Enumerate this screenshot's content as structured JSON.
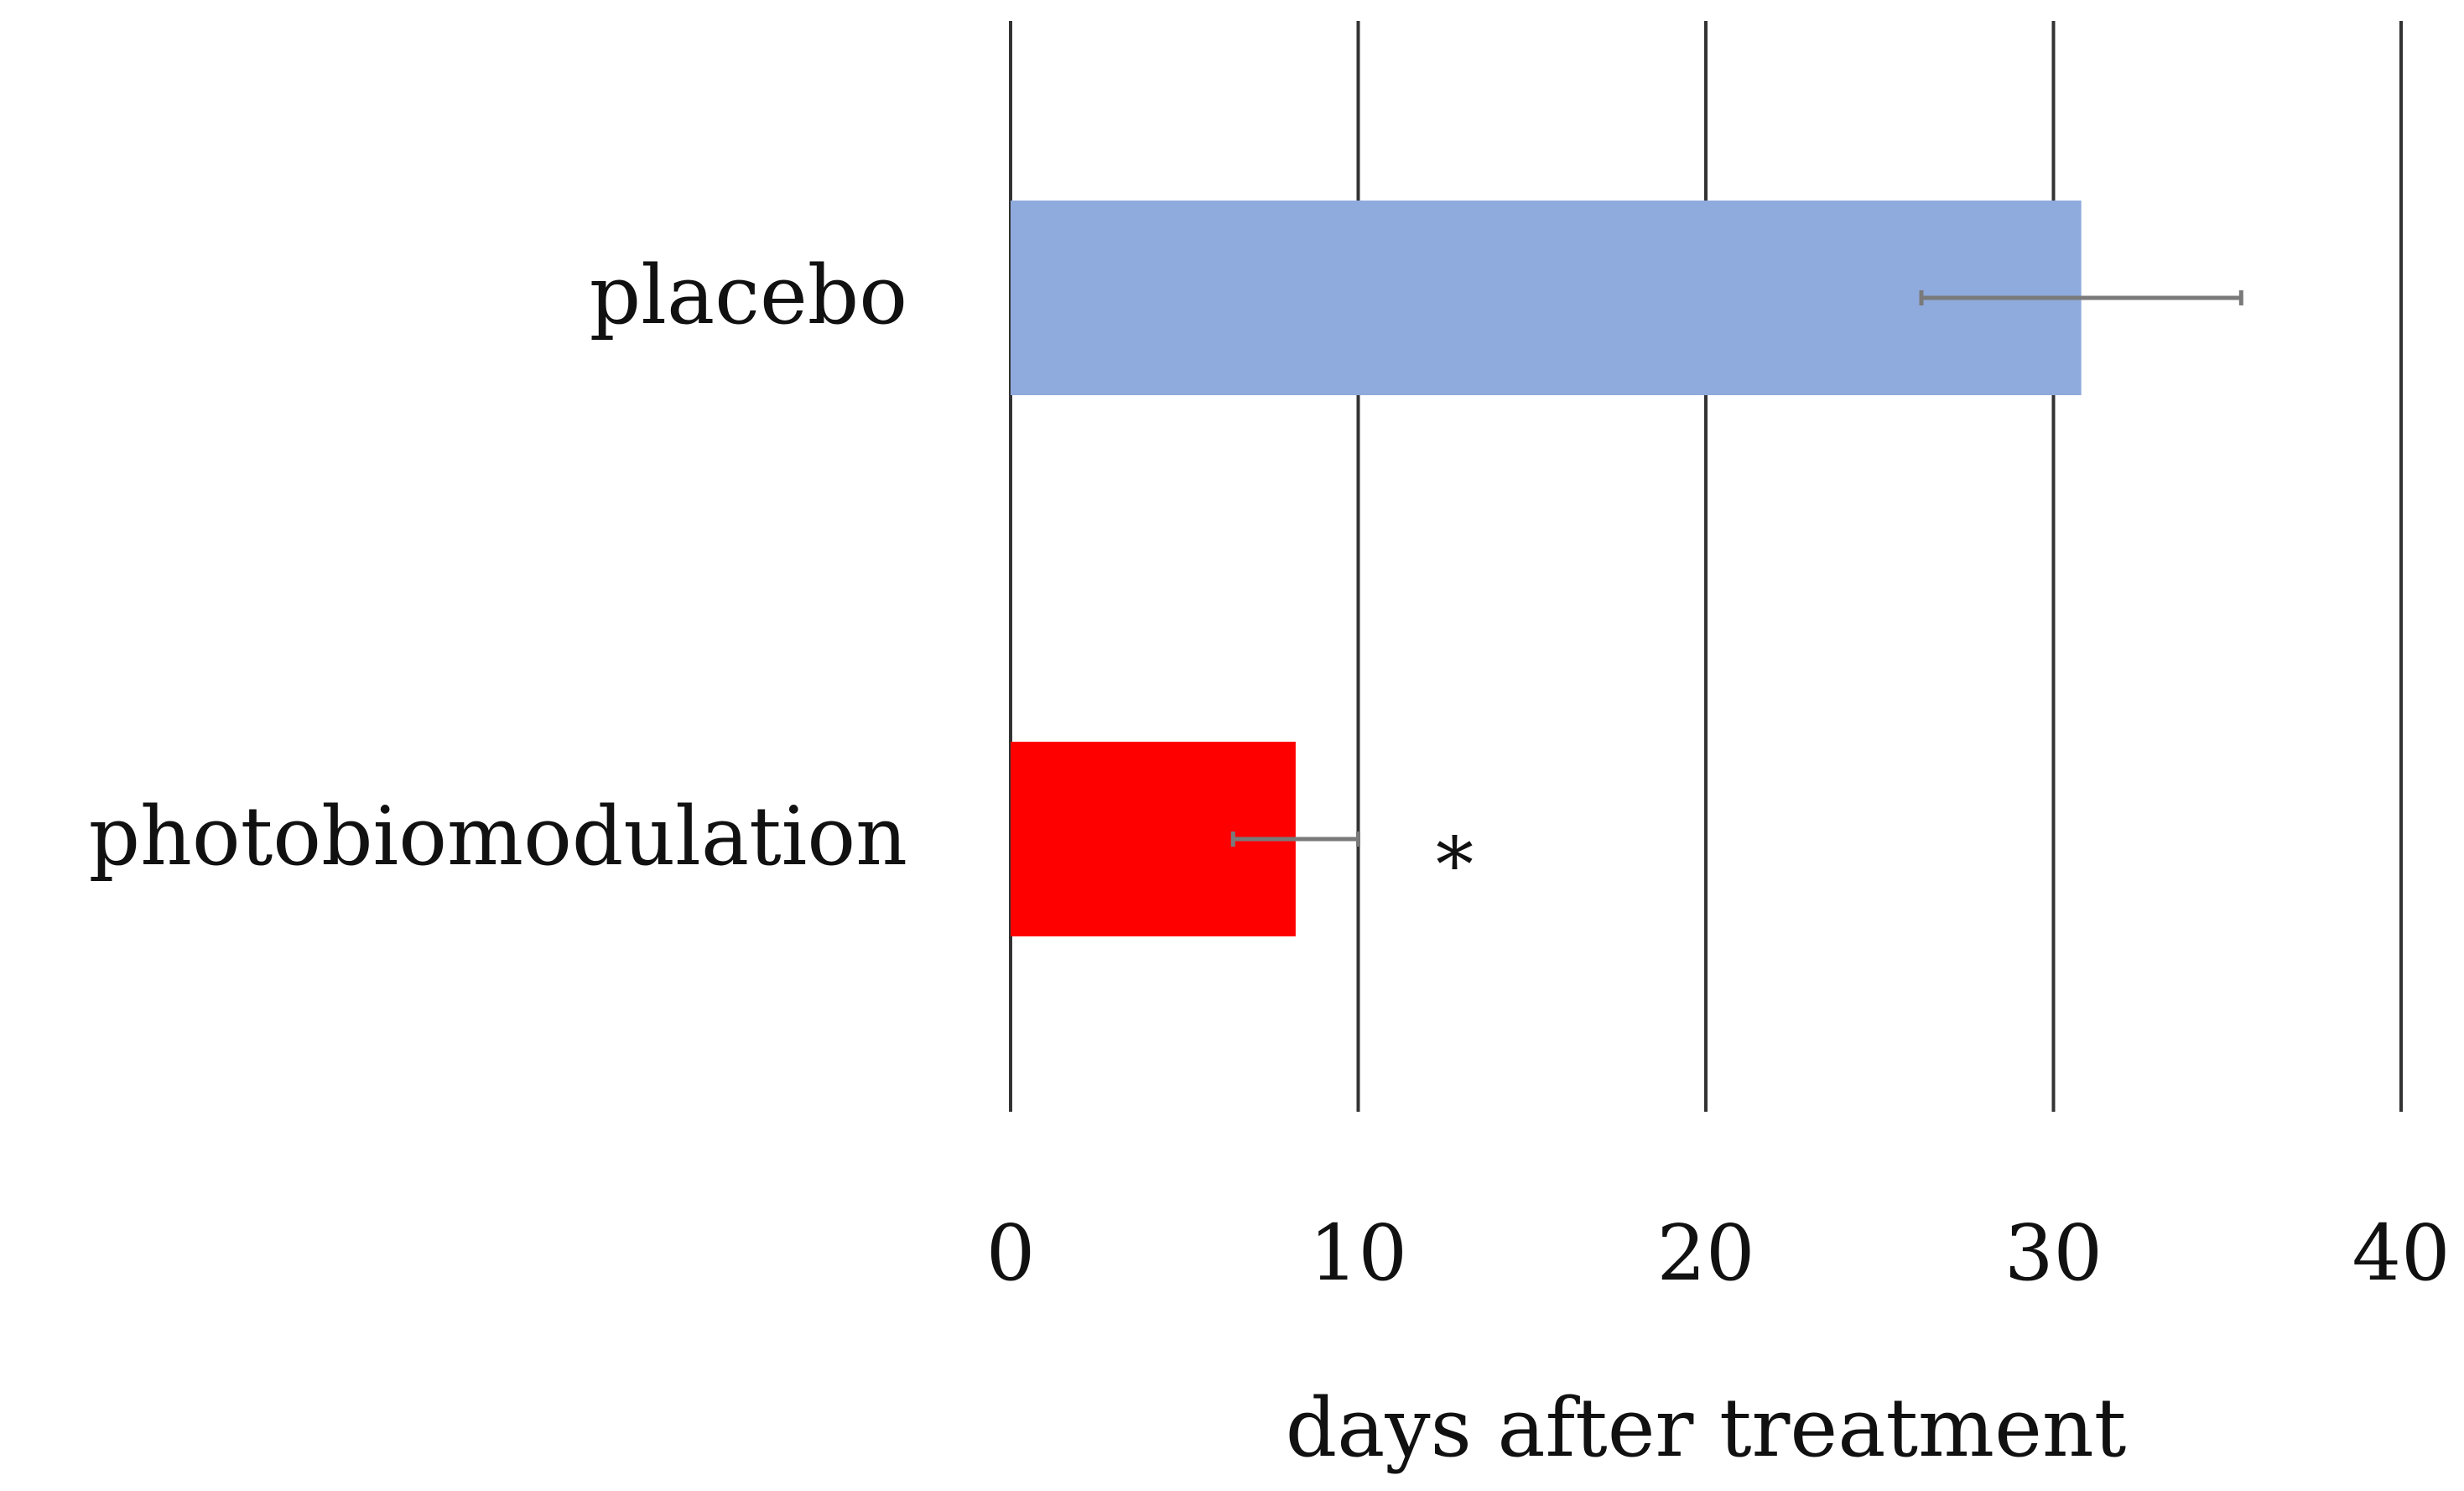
{
  "chart_data": {
    "type": "bar",
    "orientation": "horizontal",
    "title": "",
    "categories": [
      "placebo",
      "photobiomodulation"
    ],
    "values": [
      30.8,
      8.2
    ],
    "errors": [
      4.6,
      1.8
    ],
    "colors": [
      "#8faadc",
      "#ff0000"
    ],
    "annotations": [
      {
        "category": "photobiomodulation",
        "text": "*"
      }
    ],
    "xlabel": "days after treatment",
    "ylabel": "",
    "xlim": [
      0,
      40
    ],
    "xticks": [
      0,
      10,
      20,
      30,
      40
    ],
    "xtick_labels": [
      "0",
      "10",
      "20",
      "30",
      "40"
    ],
    "grid": true
  }
}
